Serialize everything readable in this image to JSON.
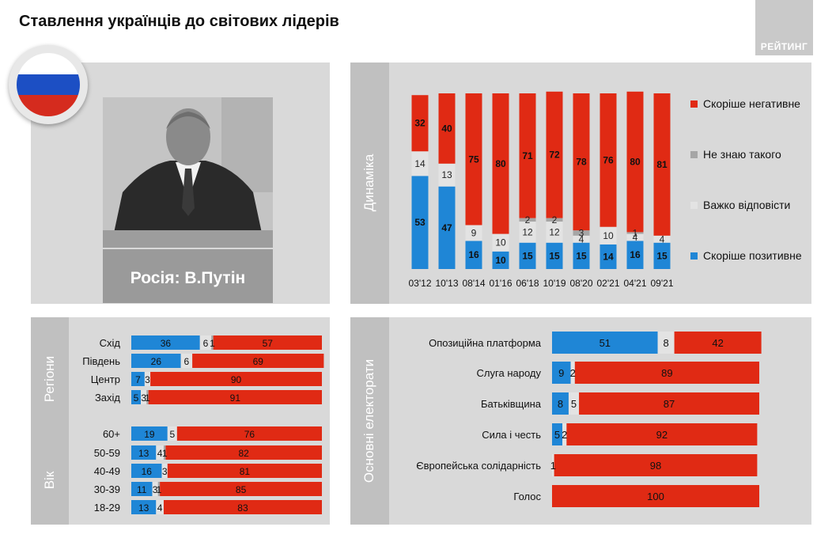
{
  "title": "Ставлення українців до світових лідерів",
  "logo_text": "РЕЙТИНГ",
  "leader_caption": "Росія: В.Путін",
  "panels": {
    "dynamics_label": "Динаміка",
    "regions_label": "Регіони",
    "age_label": "Вік",
    "electorate_label": "Основні електорати"
  },
  "colors": {
    "positive": "#1f86d6",
    "dont_know": "#a6a6a6",
    "hard_to_say": "#e3e3e3",
    "negative": "#e02a14",
    "panel_bg": "#d9d9d9"
  },
  "chart_data": [
    {
      "id": "dynamics",
      "type": "bar",
      "stacked": true,
      "categories": [
        "03'12",
        "10'13",
        "08'14",
        "01'16",
        "06'18",
        "10'19",
        "08'20",
        "02'21",
        "04'21",
        "09'21"
      ],
      "series": [
        {
          "name": "Скоріше позитивне",
          "key": "positive",
          "values": [
            53,
            47,
            16,
            10,
            15,
            15,
            15,
            14,
            16,
            15
          ]
        },
        {
          "name": "Важко відповісти",
          "key": "hard_to_say",
          "values": [
            14,
            13,
            9,
            10,
            12,
            12,
            4,
            10,
            4,
            4
          ]
        },
        {
          "name": "Не знаю такого",
          "key": "dont_know",
          "values": [
            0,
            0,
            0,
            0,
            2,
            2,
            3,
            0,
            1,
            0
          ]
        },
        {
          "name": "Скоріше негативне",
          "key": "negative",
          "values": [
            32,
            40,
            75,
            80,
            71,
            72,
            78,
            76,
            80,
            81
          ]
        }
      ],
      "legend": [
        "Скоріше негативне",
        "Не знаю такого",
        "Важко відповісти",
        "Скоріше позитивне"
      ],
      "legend_position": "right"
    },
    {
      "id": "regions",
      "type": "bar",
      "orientation": "horizontal",
      "stacked": true,
      "categories": [
        "Схід",
        "Південь",
        "Центр",
        "Захід"
      ],
      "series": [
        {
          "key": "positive",
          "values": [
            36,
            26,
            7,
            5
          ]
        },
        {
          "key": "hard_to_say",
          "values": [
            6,
            6,
            3,
            3
          ]
        },
        {
          "key": "dont_know",
          "values": [
            1,
            0,
            0,
            1
          ]
        },
        {
          "key": "negative",
          "values": [
            57,
            69,
            90,
            91
          ]
        }
      ]
    },
    {
      "id": "age",
      "type": "bar",
      "orientation": "horizontal",
      "stacked": true,
      "categories": [
        "60+",
        "50-59",
        "40-49",
        "30-39",
        "18-29"
      ],
      "series": [
        {
          "key": "positive",
          "values": [
            19,
            13,
            16,
            11,
            13
          ]
        },
        {
          "key": "hard_to_say",
          "values": [
            5,
            4,
            3,
            3,
            4
          ]
        },
        {
          "key": "dont_know",
          "values": [
            0,
            1,
            0,
            1,
            0
          ]
        },
        {
          "key": "negative",
          "values": [
            76,
            82,
            81,
            85,
            83
          ]
        }
      ]
    },
    {
      "id": "electorate",
      "type": "bar",
      "orientation": "horizontal",
      "stacked": true,
      "categories": [
        "Опозиційна платформа",
        "Слуга народу",
        "Батьківщина",
        "Сила і честь",
        "Європейська солідарність",
        "Голос"
      ],
      "series": [
        {
          "key": "positive",
          "values": [
            51,
            9,
            8,
            5,
            0,
            0
          ]
        },
        {
          "key": "hard_to_say",
          "values": [
            8,
            2,
            5,
            2,
            1,
            0
          ]
        },
        {
          "key": "dont_know",
          "values": [
            0,
            0,
            0,
            0,
            0,
            0
          ]
        },
        {
          "key": "negative",
          "values": [
            42,
            89,
            87,
            92,
            98,
            100
          ]
        }
      ]
    }
  ]
}
